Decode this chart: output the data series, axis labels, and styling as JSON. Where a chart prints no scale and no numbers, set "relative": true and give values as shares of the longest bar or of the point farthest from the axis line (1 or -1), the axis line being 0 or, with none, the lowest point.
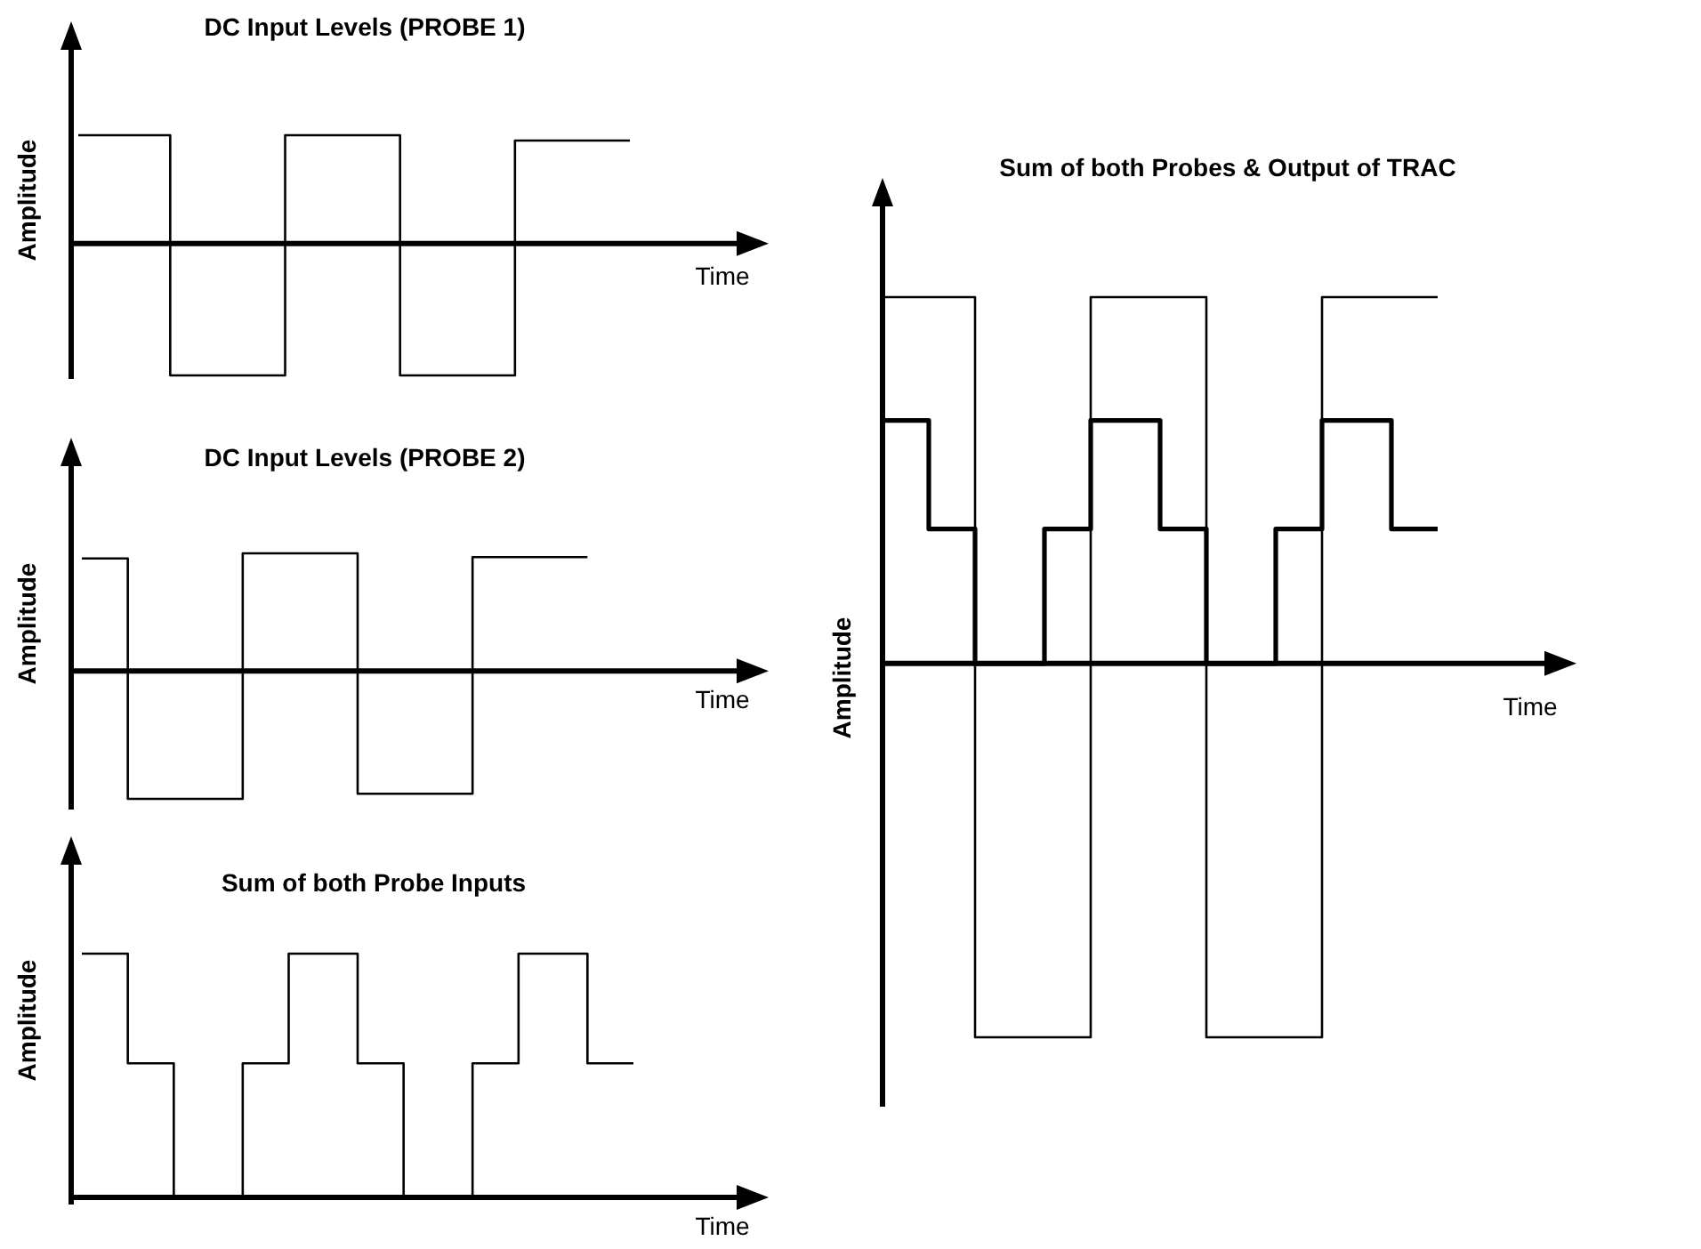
{
  "chart_data": [
    {
      "type": "step",
      "title": "DC Input Levels (PROBE 1)",
      "xlabel": "Time",
      "ylabel": "Amplitude",
      "relative": true,
      "categories": [
        null,
        null,
        null,
        null,
        null,
        null,
        null,
        null,
        null,
        null,
        null,
        null,
        null,
        null,
        null,
        null,
        null,
        null,
        null,
        null,
        null,
        null,
        null,
        null,
        null
      ],
      "series": [
        {
          "color": "#000000",
          "values": [
            0.82,
            0.82,
            0.82,
            0.82,
            -1,
            -1,
            -1,
            -1,
            -1,
            0.82,
            0.82,
            0.82,
            0.82,
            0.82,
            -1,
            -1,
            -1,
            -1,
            -1,
            0.78,
            0.78,
            0.78,
            0.78,
            0.78,
            0.78
          ]
        }
      ]
    },
    {
      "type": "step",
      "title": "DC Input Levels (PROBE 2)",
      "xlabel": "Time",
      "ylabel": "Amplitude",
      "relative": true,
      "categories": [
        null,
        null,
        null,
        null,
        null,
        null,
        null,
        null,
        null,
        null,
        null,
        null,
        null,
        null,
        null,
        null,
        null,
        null,
        null,
        null,
        null,
        null,
        null,
        null,
        null
      ],
      "series": [
        {
          "color": "#000000",
          "values": [
            0.88,
            0.88,
            -1,
            -1,
            -1,
            -1,
            -1,
            0.92,
            0.92,
            0.92,
            0.92,
            0.92,
            -0.96,
            -0.96,
            -0.96,
            -0.96,
            -0.96,
            0.89,
            0.89,
            0.89,
            0.89,
            0.89,
            0.89,
            null,
            null
          ]
        }
      ]
    },
    {
      "type": "step",
      "title": "Sum of both Probe Inputs",
      "xlabel": "Time",
      "ylabel": "Amplitude",
      "relative": true,
      "categories": [
        null,
        null,
        null,
        null,
        null,
        null,
        null,
        null,
        null,
        null,
        null,
        null,
        null,
        null,
        null,
        null,
        null,
        null,
        null,
        null,
        null,
        null,
        null,
        null,
        null
      ],
      "series": [
        {
          "color": "#000000",
          "values": [
            1,
            1,
            0.55,
            0.55,
            0,
            0,
            0,
            0.55,
            0.55,
            1,
            1,
            1,
            0.55,
            0.55,
            0,
            0,
            0,
            0.55,
            0.55,
            1,
            1,
            1,
            0.55,
            0.55,
            0.55
          ]
        }
      ]
    },
    {
      "type": "step",
      "title": "Sum of both Probes & Output of TRAC",
      "xlabel": "Time",
      "ylabel": "Amplitude",
      "relative": true,
      "categories": [
        null,
        null,
        null,
        null,
        null,
        null,
        null,
        null,
        null,
        null,
        null,
        null,
        null,
        null,
        null,
        null,
        null,
        null,
        null,
        null,
        null,
        null,
        null,
        null,
        null
      ],
      "series": [
        {
          "color": "#000000",
          "values": [
            0.98,
            0.98,
            0.98,
            0.98,
            -1,
            -1,
            -1,
            -1,
            -1,
            0.98,
            0.98,
            0.98,
            0.98,
            0.98,
            -1,
            -1,
            -1,
            -1,
            -1,
            0.98,
            0.98,
            0.98,
            0.98,
            0.98,
            0.98
          ]
        },
        {
          "color": "#000000",
          "values": [
            0.65,
            0.65,
            0.36,
            0.36,
            0,
            0,
            0,
            0.36,
            0.36,
            0.65,
            0.65,
            0.65,
            0.36,
            0.36,
            0,
            0,
            0,
            0.36,
            0.36,
            0.65,
            0.65,
            0.65,
            0.36,
            0.36,
            0.36
          ]
        }
      ]
    }
  ]
}
